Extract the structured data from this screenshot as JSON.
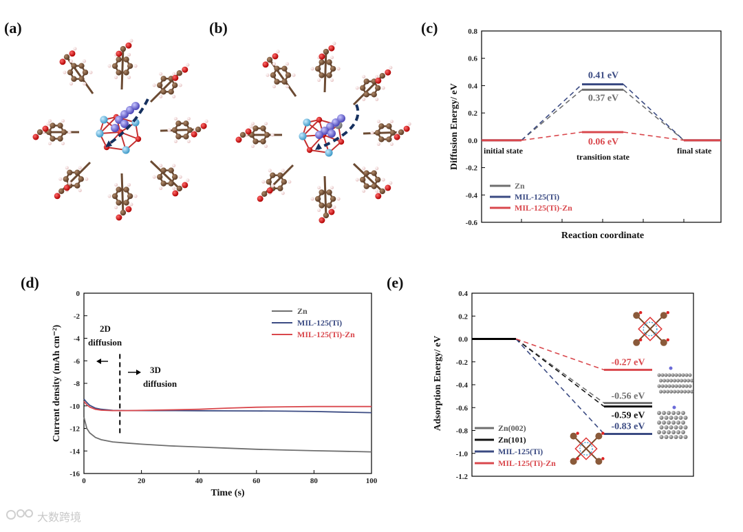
{
  "panels": {
    "a": "(a)",
    "b": "(b)",
    "c": "(c)",
    "d": "(d)",
    "e": "(e)"
  },
  "colors": {
    "zn": "#6e6e6e",
    "mil": "#3a4a82",
    "milzn": "#d9474c",
    "zn101": "#111111"
  },
  "chart_data": [
    {
      "id": "c",
      "type": "line",
      "xlabel": "Reaction coordinate",
      "ylabel": "Diffusion Energy/ eV",
      "ylim": [
        -0.6,
        0.8
      ],
      "yticks": [
        "-0.6",
        "-0.4",
        "-0.2",
        "0.0",
        "0.2",
        "0.4",
        "0.6",
        "0.8"
      ],
      "states": [
        "initial state",
        "transition state",
        "final state"
      ],
      "series": [
        {
          "name": "Zn",
          "values": [
            0.0,
            0.37,
            0.0
          ],
          "label": "0.37 eV"
        },
        {
          "name": "MIL-125(Ti)",
          "values": [
            0.0,
            0.41,
            0.0
          ],
          "label": "0.41 eV"
        },
        {
          "name": "MIL-125(Ti)-Zn",
          "values": [
            0.0,
            0.06,
            0.0
          ],
          "label": "0.06 eV"
        }
      ],
      "legend": "bottom-left"
    },
    {
      "id": "d",
      "type": "line",
      "xlabel": "Time (s)",
      "ylabel": "Current density (mAh cm⁻²)",
      "xlim": [
        0,
        100
      ],
      "ylim": [
        -16,
        0
      ],
      "xticks": [
        "0",
        "20",
        "40",
        "60",
        "80",
        "100"
      ],
      "yticks": [
        "0",
        "-2",
        "-4",
        "-6",
        "-8",
        "-10",
        "-12",
        "-14",
        "-16"
      ],
      "annotations": {
        "left": [
          "2D",
          "diffusion"
        ],
        "right": [
          "3D",
          "diffusion"
        ],
        "divider_x": 12.5
      },
      "series": [
        {
          "name": "Zn",
          "x": [
            0,
            1,
            2,
            4,
            6,
            10,
            15,
            20,
            30,
            40,
            50,
            60,
            70,
            80,
            90,
            100
          ],
          "y": [
            -11.0,
            -12.0,
            -12.4,
            -12.8,
            -13.0,
            -13.2,
            -13.3,
            -13.4,
            -13.55,
            -13.65,
            -13.75,
            -13.85,
            -13.92,
            -13.98,
            -14.03,
            -14.08
          ]
        },
        {
          "name": "MIL-125(Ti)",
          "x": [
            0,
            1,
            2,
            4,
            6,
            10,
            15,
            20,
            30,
            40,
            50,
            60,
            70,
            80,
            90,
            100
          ],
          "y": [
            -9.4,
            -9.7,
            -9.95,
            -10.2,
            -10.3,
            -10.4,
            -10.42,
            -10.42,
            -10.42,
            -10.43,
            -10.44,
            -10.45,
            -10.47,
            -10.5,
            -10.55,
            -10.6
          ]
        },
        {
          "name": "MIL-125(Ti)-Zn",
          "x": [
            0,
            1,
            2,
            4,
            6,
            10,
            15,
            20,
            30,
            40,
            50,
            60,
            70,
            80,
            90,
            100
          ],
          "y": [
            -9.6,
            -9.9,
            -10.1,
            -10.3,
            -10.38,
            -10.42,
            -10.42,
            -10.4,
            -10.35,
            -10.3,
            -10.2,
            -10.12,
            -10.08,
            -10.06,
            -10.06,
            -10.06
          ]
        }
      ],
      "legend": "top-right"
    },
    {
      "id": "e",
      "type": "line",
      "ylabel": "Adsorption Energy/ eV",
      "ylim": [
        -1.2,
        0.4
      ],
      "yticks": [
        "0.4",
        "0.2",
        "0.0",
        "-0.2",
        "-0.4",
        "-0.6",
        "-0.8",
        "-1.0",
        "-1.2"
      ],
      "series": [
        {
          "name": "Zn(002)",
          "values": [
            0.0,
            -0.56
          ],
          "label": "-0.56 eV"
        },
        {
          "name": "Zn(101)",
          "values": [
            0.0,
            -0.59
          ],
          "label": "-0.59 eV"
        },
        {
          "name": "MIL-125(Ti)",
          "values": [
            0.0,
            -0.83
          ],
          "label": "-0.83 eV"
        },
        {
          "name": "MIL-125(Ti)-Zn",
          "values": [
            0.0,
            -0.27
          ],
          "label": "-0.27 eV"
        }
      ],
      "legend": "bottom-left"
    }
  ],
  "watermark": "大数跨境"
}
